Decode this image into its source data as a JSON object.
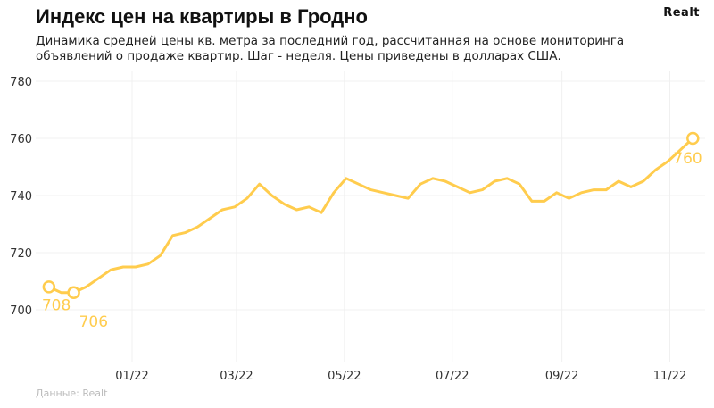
{
  "header": {
    "title": "Индекс цен на квартиры в Гродно",
    "logo": "Realt",
    "subtitle": "Динамика средней цены кв. метра за последний год, рассчитанная на основе мониторинга объявлений о продаже квартир. Шаг - неделя. Цены приведены в долларах США."
  },
  "footer": {
    "source": "Данные: Realt"
  },
  "chart_data": {
    "type": "line",
    "title": "Индекс цен на квартиры в Гродно",
    "xlabel": "",
    "ylabel": "",
    "ylim": [
      680,
      784
    ],
    "yticks": [
      700,
      720,
      740,
      760,
      780
    ],
    "xticks": [
      {
        "date": "2022-01-01",
        "label": "01/22"
      },
      {
        "date": "2022-03-01",
        "label": "03/22"
      },
      {
        "date": "2022-05-01",
        "label": "05/22"
      },
      {
        "date": "2022-07-01",
        "label": "07/22"
      },
      {
        "date": "2022-09-01",
        "label": "09/22"
      },
      {
        "date": "2022-11-01",
        "label": "11/22"
      }
    ],
    "grid": true,
    "color": "#FFCC4D",
    "start_date": "2021-11-15",
    "step": "week",
    "values": [
      708,
      706,
      706,
      708,
      711,
      714,
      715,
      715,
      716,
      719,
      726,
      727,
      729,
      732,
      735,
      736,
      739,
      744,
      740,
      737,
      735,
      736,
      734,
      741,
      746,
      744,
      742,
      741,
      740,
      739,
      744,
      746,
      745,
      743,
      741,
      742,
      745,
      746,
      744,
      738,
      738,
      741,
      739,
      741,
      742,
      742,
      745,
      743,
      745,
      749,
      752,
      756,
      760
    ],
    "annotations": [
      {
        "index": 0,
        "label": "708"
      },
      {
        "index": 2,
        "label": "706"
      },
      {
        "index": 52,
        "label": "760"
      }
    ]
  }
}
